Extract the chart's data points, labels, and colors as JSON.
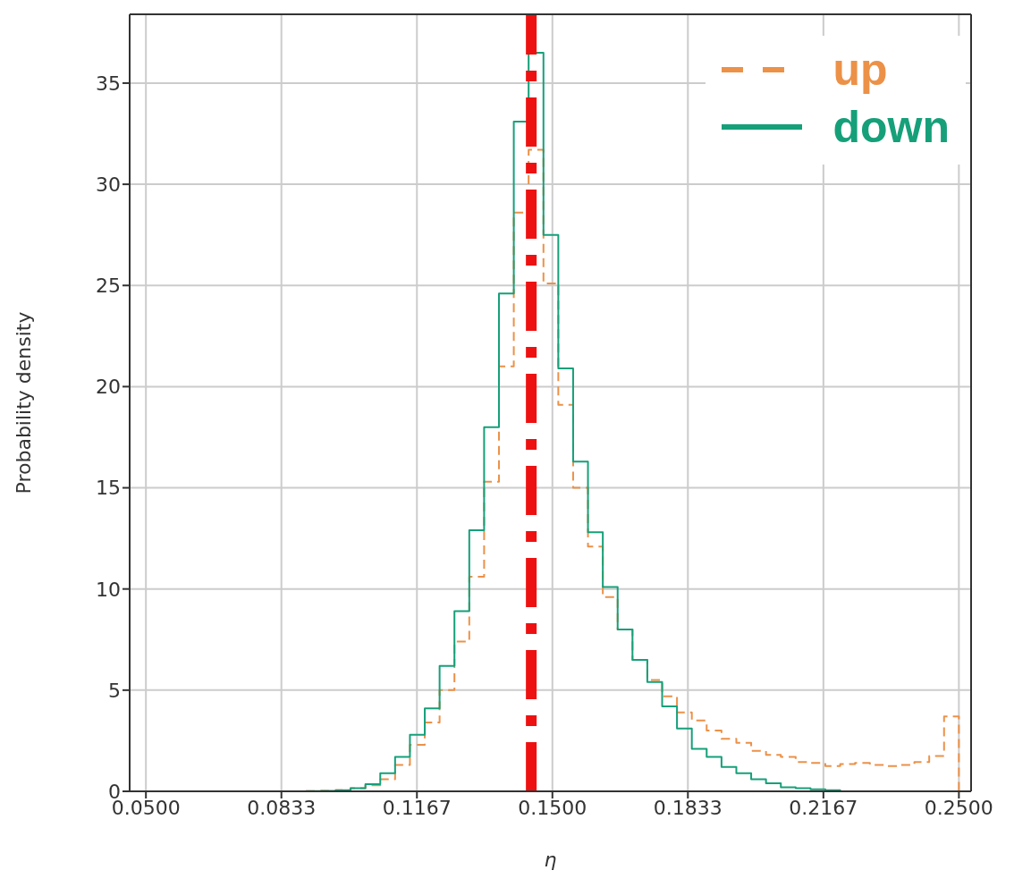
{
  "chart_data": {
    "type": "histogram",
    "xlabel": "η",
    "ylabel": "Probability density",
    "bins": [
      0.0894,
      0.09305,
      0.0967,
      0.10035,
      0.104,
      0.10765,
      0.1113,
      0.11495,
      0.1186,
      0.12225,
      0.1259,
      0.12955,
      0.1332,
      0.13685,
      0.1405,
      0.14415,
      0.1478,
      0.15145,
      0.1551,
      0.15875,
      0.1624,
      0.16605,
      0.1697,
      0.17335,
      0.177,
      0.18065,
      0.1843,
      0.18795,
      0.1916,
      0.19525,
      0.1989,
      0.20255,
      0.2062,
      0.20985,
      0.2135,
      0.21715,
      0.2208,
      0.22445,
      0.2281,
      0.23175,
      0.2354,
      0.23905,
      0.2427,
      0.24635,
      0.25
    ],
    "series": [
      {
        "name": "up",
        "color": "#ec9148",
        "line_style": "dashed",
        "values": [
          0.01,
          0.02,
          0.05,
          0.15,
          0.3,
          0.6,
          1.3,
          2.3,
          3.4,
          5.0,
          7.4,
          10.6,
          15.3,
          21.0,
          28.6,
          31.7,
          25.1,
          19.1,
          15.0,
          12.1,
          9.6,
          8.0,
          6.5,
          5.5,
          4.7,
          3.9,
          3.5,
          3.0,
          2.6,
          2.4,
          2.0,
          1.8,
          1.7,
          1.45,
          1.4,
          1.25,
          1.35,
          1.4,
          1.3,
          1.25,
          1.3,
          1.45,
          1.75,
          3.7
        ]
      },
      {
        "name": "down",
        "color": "#16a07a",
        "line_style": "solid",
        "values": [
          0.01,
          0.02,
          0.05,
          0.15,
          0.35,
          0.9,
          1.7,
          2.8,
          4.1,
          6.2,
          8.9,
          12.9,
          18.0,
          24.6,
          33.1,
          36.5,
          27.5,
          20.9,
          16.3,
          12.8,
          10.1,
          8.0,
          6.5,
          5.4,
          4.2,
          3.1,
          2.1,
          1.7,
          1.2,
          0.9,
          0.6,
          0.4,
          0.2,
          0.15,
          0.1,
          0.05,
          0,
          0,
          0,
          0,
          0,
          0,
          0,
          0
        ]
      }
    ],
    "ref_lines": [
      {
        "axis": "x",
        "value": 0.1448,
        "color": "#ee1111"
      }
    ],
    "xlim": [
      0.046,
      0.253
    ],
    "xticks": [
      {
        "value": 0.05,
        "label": "0.0500"
      },
      {
        "value": 0.08333,
        "label": "0.0833"
      },
      {
        "value": 0.11667,
        "label": "0.1167"
      },
      {
        "value": 0.15,
        "label": "0.1500"
      },
      {
        "value": 0.18333,
        "label": "0.1833"
      },
      {
        "value": 0.21667,
        "label": "0.2167"
      },
      {
        "value": 0.25,
        "label": "0.2500"
      }
    ],
    "ylim": [
      0,
      38.4
    ],
    "yticks": [
      0,
      5,
      10,
      15,
      20,
      25,
      30,
      35
    ],
    "grid": true,
    "legend": "top right"
  }
}
